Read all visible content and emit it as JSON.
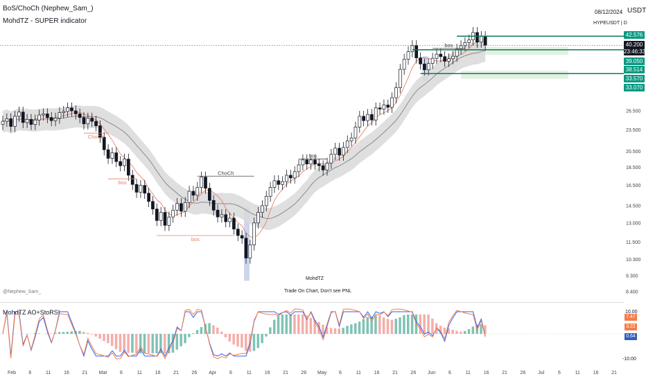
{
  "header": {
    "title": "BoS/ChoCh (Nephew_Sam_)",
    "indicator": "MohdTZ - SUPER indicator",
    "date": "08/12/2024",
    "currency": "USDT",
    "symbol_tf": "HYPEUSDT  |  D"
  },
  "watermark": {
    "author": "@Nephew_Sam_",
    "brand": "MohdTZ",
    "slogan": "Trade On Chart, Don't see  PNL"
  },
  "price_tags": [
    {
      "label": "42.576",
      "color": "#089981"
    },
    {
      "label": "40.200",
      "color": "#131722"
    },
    {
      "label": "23:46:33",
      "color": "#131722"
    },
    {
      "label": "39.050",
      "color": "#089981"
    },
    {
      "label": "38.514",
      "color": "#089981"
    },
    {
      "label": "33.570",
      "color": "#089981"
    },
    {
      "label": "33.070",
      "color": "#089981"
    }
  ],
  "oscillator": {
    "title": "MohdTZ AO+StoRSI",
    "tags": [
      {
        "label": "7.47",
        "color": "#f57c46"
      },
      {
        "label": "3.22",
        "color": "#f57c46"
      },
      {
        "label": "0.64",
        "color": "#2f5fbf"
      }
    ],
    "y_ticks": [
      "10.00",
      "-10.00"
    ]
  },
  "chart_data": {
    "type": "candlestick",
    "y_scale": "log",
    "y_ticks": [
      "26.500",
      "23.500",
      "20.500",
      "18.500",
      "16.500",
      "14.500",
      "13.000",
      "11.500",
      "10.300",
      "9.300",
      "8.400"
    ],
    "x_ticks": [
      "Feb",
      "6",
      "11",
      "16",
      "21",
      "Mar",
      "6",
      "11",
      "16",
      "21",
      "26",
      "Apr",
      "6",
      "11",
      "16",
      "21",
      "26",
      "May",
      "6",
      "11",
      "16",
      "21",
      "26",
      "Jun",
      "6",
      "11",
      "16",
      "21",
      "26",
      "Jul",
      "6",
      "11",
      "16",
      "21"
    ],
    "closes": [
      24.8,
      25.2,
      24.0,
      25.6,
      26.3,
      24.6,
      25.1,
      24.3,
      25.0,
      25.8,
      26.0,
      25.4,
      24.9,
      25.3,
      26.2,
      26.4,
      27.0,
      26.5,
      26.0,
      25.4,
      24.4,
      25.3,
      24.8,
      24.1,
      22.4,
      20.7,
      19.6,
      20.3,
      19.2,
      18.7,
      19.5,
      17.6,
      16.6,
      15.8,
      16.5,
      15.7,
      14.9,
      14.2,
      13.2,
      13.9,
      12.8,
      13.5,
      14.1,
      14.7,
      14.0,
      14.8,
      15.9,
      15.5,
      16.3,
      17.4,
      16.2,
      15.0,
      14.1,
      13.5,
      13.7,
      13.1,
      13.4,
      12.5,
      12.0,
      11.8,
      10.4,
      11.3,
      13.0,
      13.9,
      14.5,
      15.4,
      16.3,
      17.0,
      16.6,
      16.9,
      17.6,
      17.3,
      18.0,
      18.8,
      19.4,
      18.9,
      19.4,
      18.9,
      18.7,
      18.2,
      19.0,
      20.1,
      20.9,
      20.0,
      21.0,
      21.9,
      22.3,
      23.9,
      25.6,
      24.9,
      25.9,
      25.0,
      27.0,
      26.8,
      27.5,
      27.1,
      28.8,
      30.7,
      34.5,
      36.8,
      38.6,
      40.1,
      37.1,
      35.7,
      34.4,
      35.8,
      37.0,
      38.0,
      37.4,
      36.3,
      36.9,
      37.5,
      39.2,
      40.1,
      40.9,
      41.6,
      43.6,
      41.0,
      42.5,
      40.2
    ],
    "zones": [
      {
        "top": 39.05,
        "bottom": 38.514
      },
      {
        "top": 33.57,
        "bottom": 33.07
      }
    ],
    "levels": [
      42.576,
      40.2,
      39.05,
      33.57
    ],
    "annotations": [
      "ChoCh",
      "bos",
      "bos",
      "ChoCh",
      "bos",
      "bos"
    ]
  }
}
